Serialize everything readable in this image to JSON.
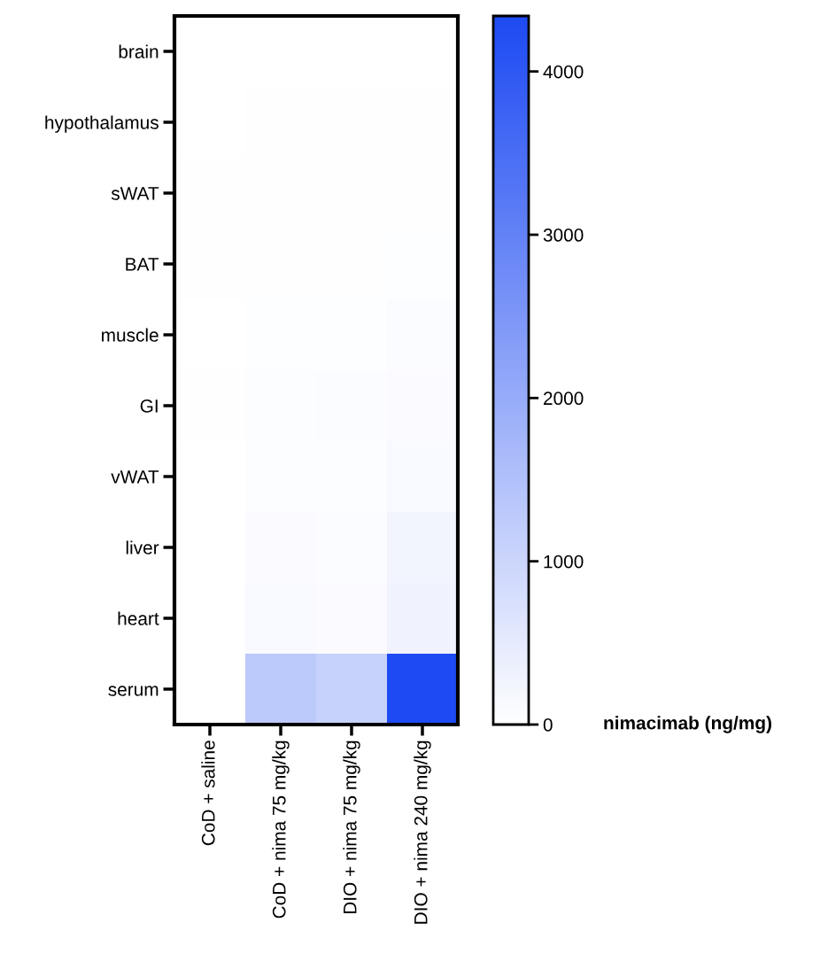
{
  "chart_data": {
    "type": "heatmap",
    "clabel": "nimacimab (ng/mg)",
    "categories": [
      "CoD + saline",
      "CoD + nima 75 mg/kg",
      "DIO + nima 75 mg/kg",
      "DIO + nima 240 mg/kg"
    ],
    "y_categories": [
      "brain",
      "hypothalamus",
      "sWAT",
      "BAT",
      "muscle",
      "GI",
      "vWAT",
      "liver",
      "heart",
      "serum"
    ],
    "cells": [
      [
        0,
        10,
        10,
        10
      ],
      [
        0,
        20,
        20,
        20
      ],
      [
        20,
        20,
        20,
        30
      ],
      [
        20,
        30,
        30,
        40
      ],
      [
        15,
        40,
        40,
        70
      ],
      [
        30,
        60,
        80,
        100
      ],
      [
        10,
        60,
        60,
        120
      ],
      [
        0,
        100,
        80,
        250
      ],
      [
        0,
        120,
        100,
        300
      ],
      [
        0,
        1300,
        1100,
        4340
      ]
    ],
    "colors": [
      "#ffffff",
      "#1d4af2"
    ],
    "clim": [
      0,
      4340
    ],
    "cticks": [
      0,
      1000,
      2000,
      3000,
      4000
    ]
  }
}
